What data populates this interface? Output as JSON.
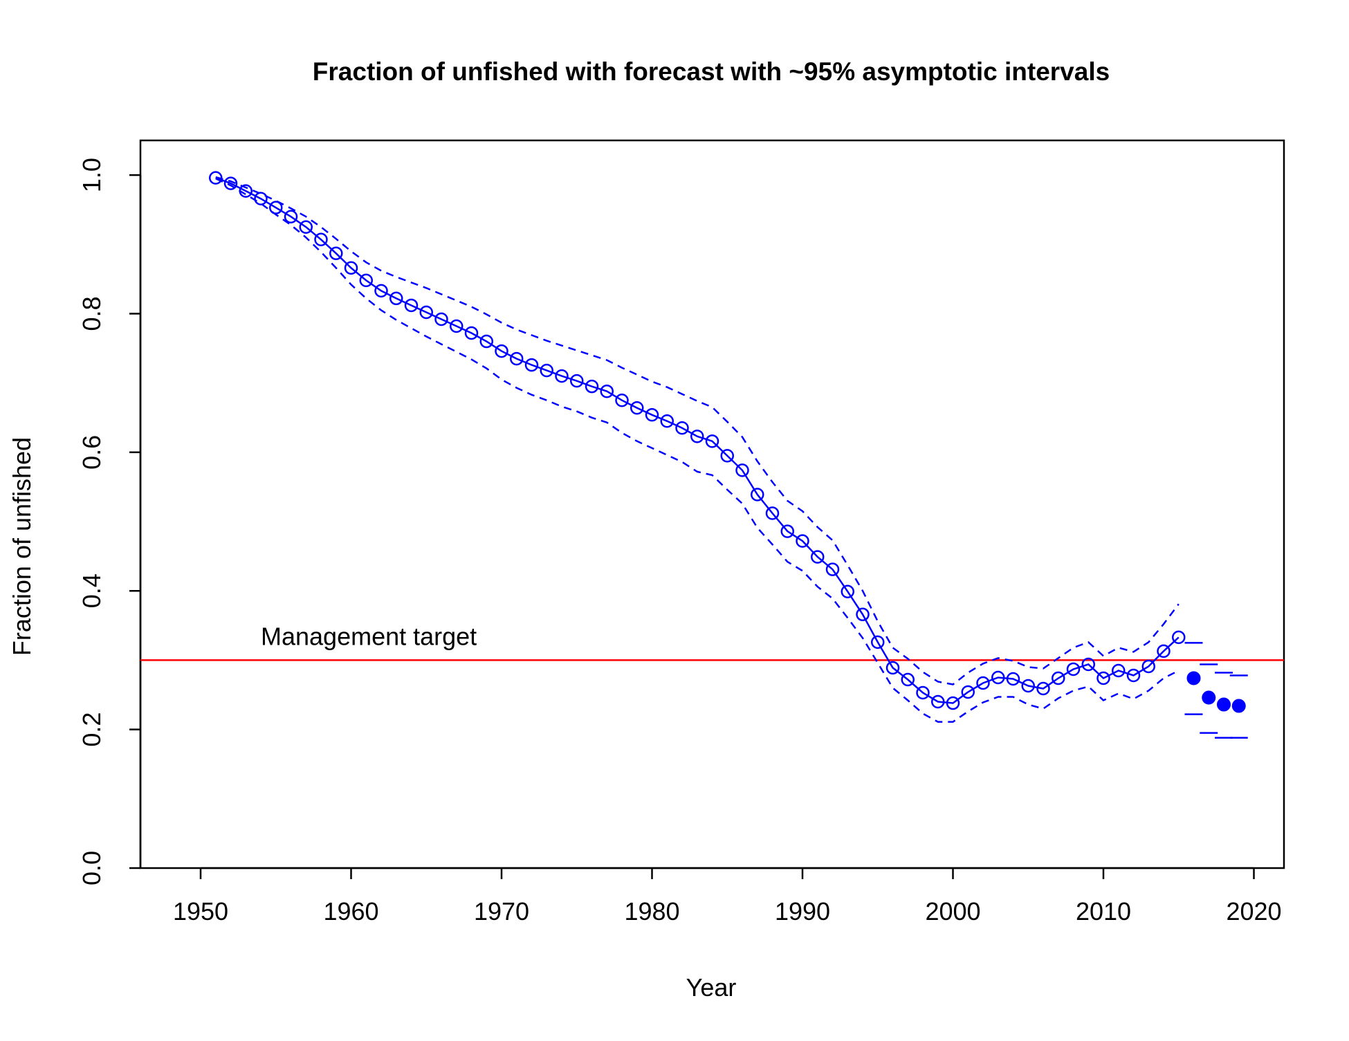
{
  "chart_data": {
    "type": "line",
    "title": "Fraction of unfished with forecast with ~95% asymptotic intervals",
    "xlabel": "Year",
    "ylabel": "Fraction of unfished",
    "xlim": [
      1946,
      2022
    ],
    "ylim": [
      0,
      1.05
    ],
    "x_ticks": [
      "1950",
      "1960",
      "1970",
      "1980",
      "1990",
      "2000",
      "2010",
      "2020"
    ],
    "y_ticks": [
      "0.0",
      "0.2",
      "0.4",
      "0.6",
      "0.8",
      "1.0"
    ],
    "grid": false,
    "series": [
      {
        "role": "estimate",
        "color": "#0000ff",
        "marker": "open-circle",
        "line": "solid",
        "x": [
          1951,
          1952,
          1953,
          1954,
          1955,
          1956,
          1957,
          1958,
          1959,
          1960,
          1961,
          1962,
          1963,
          1964,
          1965,
          1966,
          1967,
          1968,
          1969,
          1970,
          1971,
          1972,
          1973,
          1974,
          1975,
          1976,
          1977,
          1978,
          1979,
          1980,
          1981,
          1982,
          1983,
          1984,
          1985,
          1986,
          1987,
          1988,
          1989,
          1990,
          1991,
          1992,
          1993,
          1994,
          1995,
          1996,
          1997,
          1998,
          1999,
          2000,
          2001,
          2002,
          2003,
          2004,
          2005,
          2006,
          2007,
          2008,
          2009,
          2010,
          2011,
          2012,
          2013,
          2014,
          2015
        ],
        "y": [
          0.996,
          0.988,
          0.977,
          0.966,
          0.953,
          0.94,
          0.925,
          0.907,
          0.887,
          0.866,
          0.848,
          0.833,
          0.822,
          0.812,
          0.802,
          0.792,
          0.782,
          0.772,
          0.76,
          0.746,
          0.735,
          0.726,
          0.718,
          0.71,
          0.703,
          0.695,
          0.688,
          0.675,
          0.664,
          0.654,
          0.645,
          0.635,
          0.623,
          0.616,
          0.595,
          0.574,
          0.539,
          0.512,
          0.486,
          0.472,
          0.449,
          0.431,
          0.399,
          0.366,
          0.326,
          0.289,
          0.272,
          0.253,
          0.24,
          0.238,
          0.254,
          0.267,
          0.275,
          0.273,
          0.263,
          0.259,
          0.274,
          0.287,
          0.294,
          0.274,
          0.285,
          0.278,
          0.291,
          0.313,
          0.333
        ]
      },
      {
        "role": "upper-interval",
        "color": "#0000ff",
        "line": "dashed",
        "x": [
          1951,
          1952,
          1953,
          1954,
          1955,
          1956,
          1957,
          1958,
          1959,
          1960,
          1961,
          1962,
          1963,
          1964,
          1965,
          1966,
          1967,
          1968,
          1969,
          1970,
          1971,
          1972,
          1973,
          1974,
          1975,
          1976,
          1977,
          1978,
          1979,
          1980,
          1981,
          1982,
          1983,
          1984,
          1985,
          1986,
          1987,
          1988,
          1989,
          1990,
          1991,
          1992,
          1993,
          1994,
          1995,
          1996,
          1997,
          1998,
          1999,
          2000,
          2001,
          2002,
          2003,
          2004,
          2005,
          2006,
          2007,
          2008,
          2009,
          2010,
          2011,
          2012,
          2013,
          2014,
          2015
        ],
        "y": [
          0.997,
          0.991,
          0.982,
          0.973,
          0.963,
          0.952,
          0.94,
          0.925,
          0.908,
          0.89,
          0.874,
          0.862,
          0.853,
          0.845,
          0.837,
          0.828,
          0.819,
          0.81,
          0.799,
          0.787,
          0.777,
          0.769,
          0.761,
          0.754,
          0.747,
          0.74,
          0.733,
          0.722,
          0.712,
          0.702,
          0.694,
          0.684,
          0.674,
          0.665,
          0.644,
          0.622,
          0.587,
          0.557,
          0.53,
          0.515,
          0.492,
          0.473,
          0.437,
          0.4,
          0.356,
          0.318,
          0.302,
          0.283,
          0.269,
          0.265,
          0.282,
          0.295,
          0.303,
          0.299,
          0.29,
          0.288,
          0.303,
          0.318,
          0.326,
          0.306,
          0.318,
          0.312,
          0.326,
          0.352,
          0.381
        ]
      },
      {
        "role": "lower-interval",
        "color": "#0000ff",
        "line": "dashed",
        "x": [
          1951,
          1952,
          1953,
          1954,
          1955,
          1956,
          1957,
          1958,
          1959,
          1960,
          1961,
          1962,
          1963,
          1964,
          1965,
          1966,
          1967,
          1968,
          1969,
          1970,
          1971,
          1972,
          1973,
          1974,
          1975,
          1976,
          1977,
          1978,
          1979,
          1980,
          1981,
          1982,
          1983,
          1984,
          1985,
          1986,
          1987,
          1988,
          1989,
          1990,
          1991,
          1992,
          1993,
          1994,
          1995,
          1996,
          1997,
          1998,
          1999,
          2000,
          2001,
          2002,
          2003,
          2004,
          2005,
          2006,
          2007,
          2008,
          2009,
          2010,
          2011,
          2012,
          2013,
          2014,
          2015
        ],
        "y": [
          0.995,
          0.985,
          0.972,
          0.959,
          0.943,
          0.928,
          0.91,
          0.889,
          0.866,
          0.842,
          0.822,
          0.805,
          0.791,
          0.779,
          0.767,
          0.756,
          0.745,
          0.734,
          0.721,
          0.705,
          0.693,
          0.683,
          0.675,
          0.666,
          0.659,
          0.65,
          0.643,
          0.628,
          0.616,
          0.606,
          0.596,
          0.586,
          0.572,
          0.567,
          0.546,
          0.526,
          0.491,
          0.467,
          0.442,
          0.429,
          0.406,
          0.389,
          0.361,
          0.332,
          0.296,
          0.26,
          0.242,
          0.223,
          0.211,
          0.211,
          0.226,
          0.239,
          0.247,
          0.247,
          0.236,
          0.23,
          0.245,
          0.256,
          0.262,
          0.242,
          0.252,
          0.244,
          0.256,
          0.274,
          0.285
        ]
      },
      {
        "role": "forecast",
        "color": "#0000ff",
        "marker": "filled-circle",
        "x": [
          2016,
          2017,
          2018,
          2019
        ],
        "y": [
          0.274,
          0.246,
          0.236,
          0.234
        ],
        "upper": [
          0.325,
          0.294,
          0.282,
          0.278
        ],
        "lower": [
          0.222,
          0.195,
          0.188,
          0.188
        ]
      }
    ],
    "reference_line": {
      "y": 0.3,
      "color": "#ff0000",
      "label": "Management target"
    }
  }
}
